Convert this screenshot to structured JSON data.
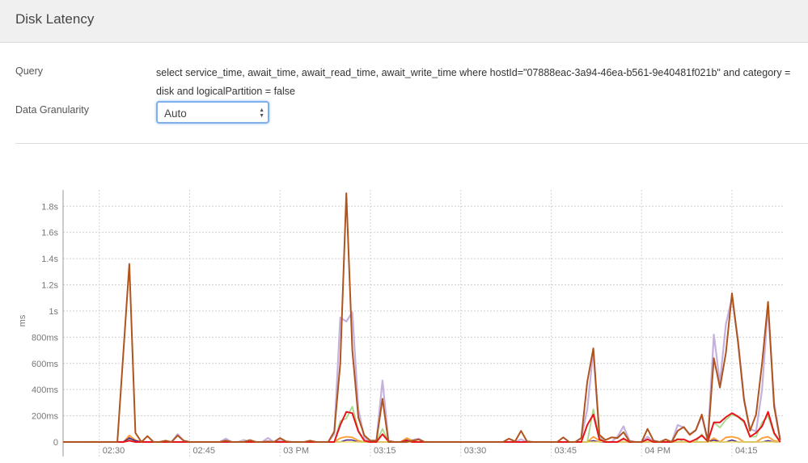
{
  "header": {
    "title": "Disk Latency"
  },
  "form": {
    "query_label": "Query",
    "query_text": "select service_time, await_time, await_read_time, await_write_time where hostId=\"07888eac-3a94-46ea-b561-9e40481f021b\" and category = disk and logicalPartition = false",
    "granularity_label": "Data Granularity",
    "granularity_value": "Auto",
    "accent_color": "#7fb0ee"
  },
  "chart_data": {
    "type": "line",
    "ylabel": "ms",
    "ylim": [
      0,
      1925
    ],
    "xlim": [
      "02:24",
      "04:23"
    ],
    "grid": true,
    "x_start": "02:24",
    "x_step_minutes": 1,
    "x_ticks": [
      {
        "label": "02:30",
        "minute": 6
      },
      {
        "label": "02:45",
        "minute": 21
      },
      {
        "label": "03 PM",
        "minute": 36
      },
      {
        "label": "03:15",
        "minute": 51
      },
      {
        "label": "03:30",
        "minute": 66
      },
      {
        "label": "03:45",
        "minute": 81
      },
      {
        "label": "04 PM",
        "minute": 96
      },
      {
        "label": "04:15",
        "minute": 111
      }
    ],
    "y_ticks": [
      {
        "label": "0",
        "value": 0
      },
      {
        "label": "200ms",
        "value": 200
      },
      {
        "label": "400ms",
        "value": 400
      },
      {
        "label": "600ms",
        "value": 600
      },
      {
        "label": "800ms",
        "value": 800
      },
      {
        "label": "1s",
        "value": 1000
      },
      {
        "label": "1.2s",
        "value": 1200
      },
      {
        "label": "1.4s",
        "value": 1400
      },
      {
        "label": "1.6s",
        "value": 1600
      },
      {
        "label": "1.8s",
        "value": 1800
      }
    ],
    "series": [
      {
        "color": "#c5b0de",
        "width": 2.2,
        "points": {
          "11": 40,
          "19": 60,
          "20": 10,
          "27": 25,
          "30": 15,
          "34": 30,
          "36": 10,
          "45": 60,
          "46": 950,
          "47": 920,
          "48": 990,
          "49": 250,
          "50": 30,
          "51": 10,
          "52": 10,
          "53": 470,
          "54": 10,
          "58": 15,
          "59": 25,
          "76": 20,
          "86": 30,
          "87": 250,
          "88": 700,
          "89": 40,
          "92": 40,
          "93": 120,
          "94": 10,
          "97": 40,
          "102": 130,
          "103": 110,
          "104": 60,
          "105": 90,
          "106": 200,
          "107": 10,
          "108": 820,
          "109": 450,
          "110": 900,
          "111": 1100,
          "112": 780,
          "113": 330,
          "114": 100,
          "115": 80,
          "116": 400,
          "117": 1040,
          "118": 300,
          "119": 15
        }
      },
      {
        "color": "#a8d88a",
        "width": 1.8,
        "points": {
          "11": 20,
          "46": 160,
          "47": 180,
          "48": 270,
          "49": 90,
          "50": 10,
          "53": 100,
          "57": 20,
          "88": 250,
          "89": 30,
          "93": 30,
          "102": 25,
          "106": 60,
          "108": 150,
          "109": 110,
          "110": 170,
          "111": 210,
          "112": 190,
          "113": 150,
          "114": 40,
          "115": 40,
          "116": 150,
          "117": 200,
          "118": 60
        }
      },
      {
        "color": "#ff9a2e",
        "width": 1.8,
        "points": {
          "11": 50,
          "12": 15,
          "46": 30,
          "47": 40,
          "48": 35,
          "49": 10,
          "57": 30,
          "58": 10,
          "88": 40,
          "89": 10,
          "108": 30,
          "110": 35,
          "111": 40,
          "112": 30,
          "116": 30,
          "117": 40,
          "118": 10
        }
      },
      {
        "color": "#4b2a8f",
        "width": 1.6,
        "points": {
          "11": 30,
          "12": 10,
          "47": 15,
          "48": 15,
          "57": 15,
          "88": 10,
          "108": 15,
          "111": 15,
          "117": 10
        }
      },
      {
        "color": "#f2e35c",
        "width": 1.4,
        "points": {
          "5": 5,
          "11": 10,
          "30": 5,
          "60": 5,
          "90": 5,
          "100": 5
        }
      },
      {
        "color": "#e8141c",
        "width": 2,
        "points": {
          "11": 10,
          "46": 130,
          "47": 230,
          "48": 220,
          "49": 80,
          "50": 10,
          "53": 60,
          "54": 5,
          "57": 10,
          "87": 130,
          "88": 210,
          "89": 20,
          "93": 25,
          "97": 20,
          "102": 20,
          "103": 20,
          "105": 20,
          "106": 50,
          "107": 5,
          "108": 150,
          "109": 150,
          "110": 190,
          "111": 220,
          "112": 195,
          "113": 160,
          "114": 40,
          "115": 70,
          "116": 120,
          "117": 230,
          "118": 70
        }
      },
      {
        "color": "#b0541e",
        "width": 2,
        "points": {
          "10": 680,
          "11": 1360,
          "12": 70,
          "14": 45,
          "17": 10,
          "19": 50,
          "20": 10,
          "27": 10,
          "31": 15,
          "34": 5,
          "36": 30,
          "37": 5,
          "41": 10,
          "45": 80,
          "46": 600,
          "47": 1900,
          "48": 700,
          "49": 185,
          "50": 50,
          "51": 10,
          "52": 10,
          "53": 330,
          "58": 10,
          "59": 20,
          "74": 25,
          "75": 5,
          "76": 85,
          "77": 5,
          "83": 35,
          "86": 30,
          "87": 460,
          "88": 715,
          "89": 55,
          "90": 15,
          "91": 35,
          "92": 30,
          "93": 75,
          "94": 5,
          "97": 100,
          "98": 10,
          "100": 20,
          "102": 85,
          "103": 115,
          "104": 55,
          "105": 90,
          "106": 210,
          "107": 10,
          "108": 640,
          "109": 415,
          "110": 680,
          "111": 1135,
          "112": 765,
          "113": 320,
          "114": 85,
          "115": 210,
          "116": 600,
          "117": 1070,
          "118": 270,
          "119": 15
        }
      }
    ],
    "n_points": 120
  }
}
